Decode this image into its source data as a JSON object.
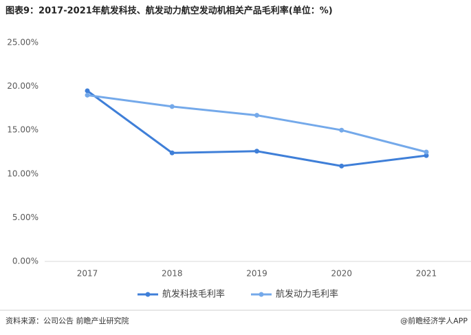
{
  "chart_data": {
    "type": "line",
    "title": "图表9：2017-2021年航发科技、航发动力航空发动机相关产品毛利率(单位：%)",
    "categories": [
      "2017",
      "2018",
      "2019",
      "2020",
      "2021"
    ],
    "series": [
      {
        "name": "航发科技毛利率",
        "color": "#3f7fd8",
        "values": [
          19.5,
          12.4,
          12.6,
          10.9,
          12.1
        ]
      },
      {
        "name": "航发动力毛利率",
        "color": "#74a9ea",
        "values": [
          19.0,
          17.7,
          16.7,
          15.0,
          12.5
        ]
      }
    ],
    "ylim": [
      0,
      25
    ],
    "yticks": [
      {
        "value": 0,
        "label": "0.00%"
      },
      {
        "value": 5,
        "label": "5.00%"
      },
      {
        "value": 10,
        "label": "10.00%"
      },
      {
        "value": 15,
        "label": "15.00%"
      },
      {
        "value": 20,
        "label": "20.00%"
      },
      {
        "value": 25,
        "label": "25.00%"
      }
    ],
    "grid": false,
    "legend": "bottom",
    "source": "资料来源：公司公告 前瞻产业研究院",
    "credit": "@前瞻经济学人APP"
  }
}
